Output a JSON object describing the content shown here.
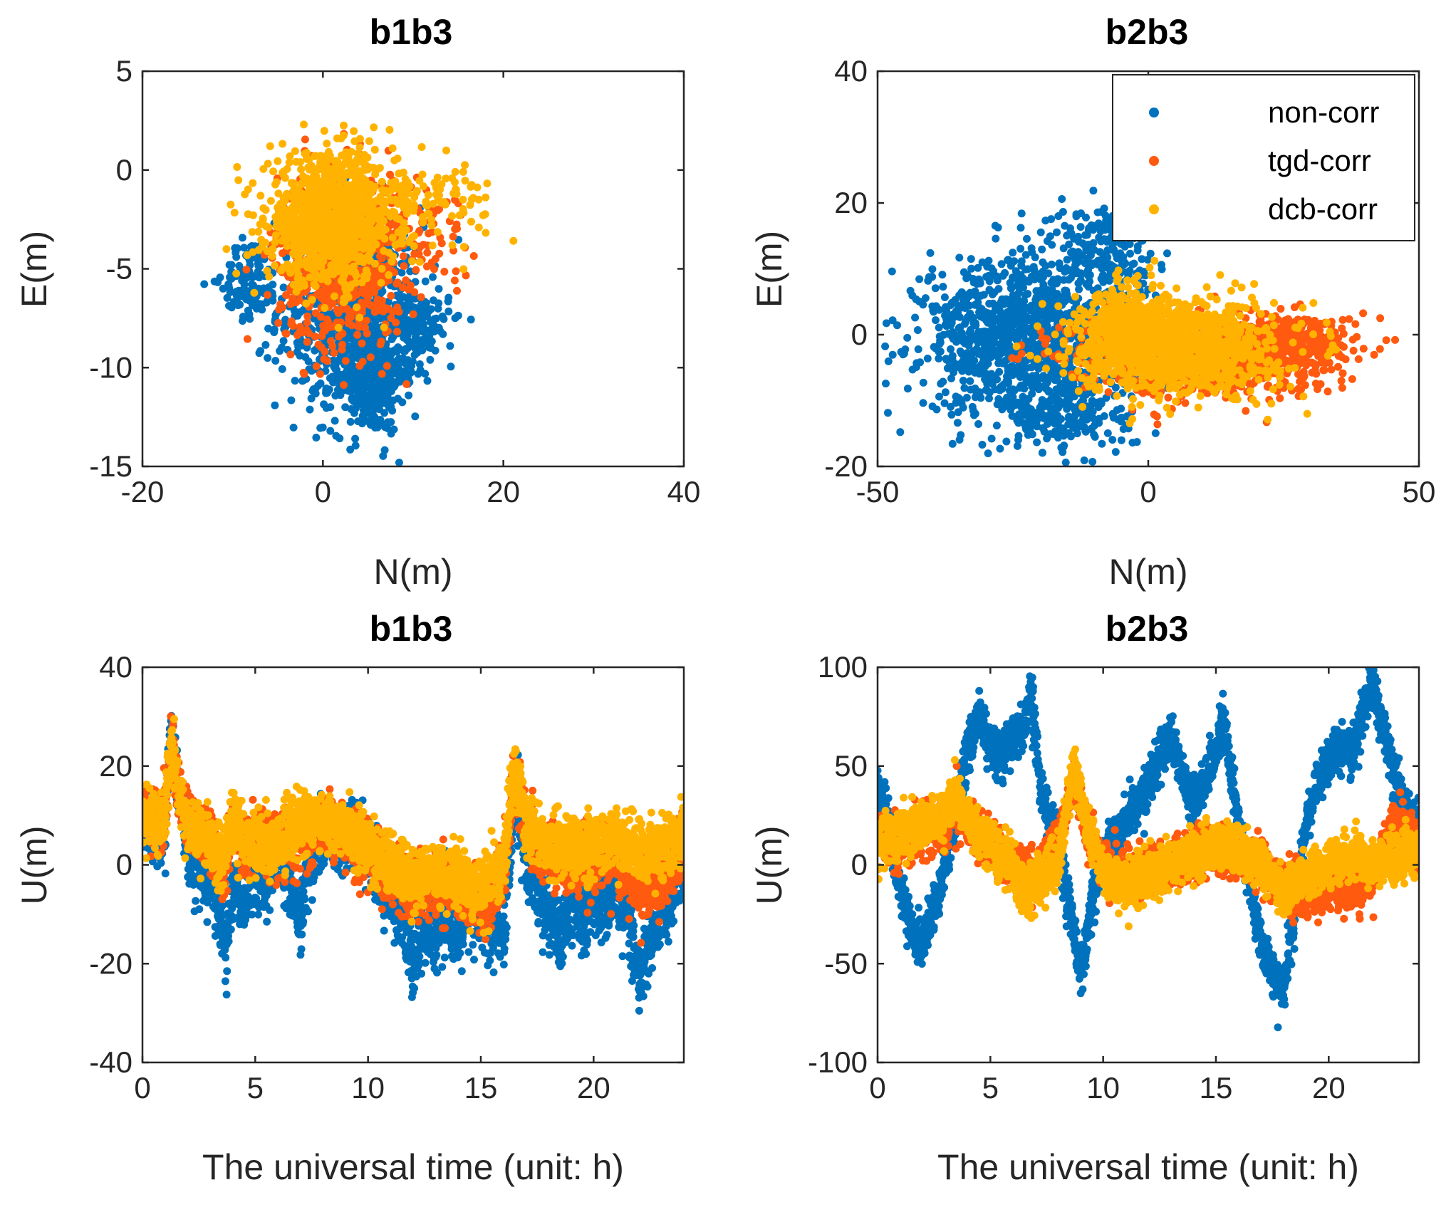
{
  "colors": {
    "non_corr": "#0072BD",
    "tgd_corr": "#FF5A0F",
    "dcb_corr": "#FFB300"
  },
  "chart_data": [
    {
      "type": "scatter",
      "title": "b1b3",
      "xlabel": "N(m)",
      "ylabel": "E(m)",
      "xlim": [
        -20,
        40
      ],
      "ylim": [
        -15,
        5
      ],
      "xticks": [
        "-20",
        "0",
        "20",
        "40"
      ],
      "yticks": [
        "5",
        "0",
        "-5",
        "-10",
        "-15"
      ],
      "series": [
        {
          "key": "non_corr",
          "clusters": [
            {
              "cx": 3,
              "cy": -7,
              "sx": 4,
              "sy": 2.6,
              "n": 700
            },
            {
              "cx": 5,
              "cy": -10.5,
              "sx": 2,
              "sy": 1.4,
              "n": 350
            },
            {
              "cx": -8,
              "cy": -5.5,
              "sx": 1.5,
              "sy": 1,
              "n": 120
            },
            {
              "cx": 10,
              "cy": -8,
              "sx": 2,
              "sy": 1,
              "n": 150
            }
          ]
        },
        {
          "key": "tgd_corr",
          "clusters": [
            {
              "cx": 2,
              "cy": -4.5,
              "sx": 3.5,
              "sy": 2.2,
              "n": 800
            },
            {
              "cx": 12,
              "cy": -3,
              "sx": 2.5,
              "sy": 1.2,
              "n": 60
            }
          ]
        },
        {
          "key": "dcb_corr",
          "clusters": [
            {
              "cx": 1,
              "cy": -2.5,
              "sx": 3.5,
              "sy": 1.6,
              "n": 1100
            },
            {
              "cx": 12,
              "cy": -1.5,
              "sx": 3.5,
              "sy": 1,
              "n": 100
            }
          ]
        }
      ]
    },
    {
      "type": "scatter",
      "title": "b2b3",
      "xlabel": "N(m)",
      "ylabel": "E(m)",
      "xlim": [
        -50,
        50
      ],
      "ylim": [
        -20,
        40
      ],
      "xticks": [
        "-50",
        "0",
        "50"
      ],
      "yticks": [
        "40",
        "20",
        "0",
        "-20"
      ],
      "legend": {
        "position": "top-right",
        "entries": [
          {
            "key": "non_corr",
            "label": "non-corr"
          },
          {
            "key": "tgd_corr",
            "label": "tgd-corr"
          },
          {
            "key": "dcb_corr",
            "label": "dcb-corr"
          }
        ]
      },
      "series": [
        {
          "key": "non_corr",
          "clusters": [
            {
              "cx": -22,
              "cy": 0,
              "sx": 10,
              "sy": 6,
              "n": 1200
            },
            {
              "cx": -8,
              "cy": 13,
              "sx": 5,
              "sy": 4,
              "n": 200
            },
            {
              "cx": -15,
              "cy": -12,
              "sx": 6,
              "sy": 3,
              "n": 200
            }
          ]
        },
        {
          "key": "tgd_corr",
          "clusters": [
            {
              "cx": 10,
              "cy": -3,
              "sx": 12,
              "sy": 3,
              "n": 900
            },
            {
              "cx": 28,
              "cy": -1,
              "sx": 5,
              "sy": 2,
              "n": 200
            }
          ]
        },
        {
          "key": "dcb_corr",
          "clusters": [
            {
              "cx": 5,
              "cy": -2,
              "sx": 9,
              "sy": 3.5,
              "n": 1200
            },
            {
              "cx": -3,
              "cy": 2,
              "sx": 4,
              "sy": 3,
              "n": 200
            }
          ]
        }
      ]
    },
    {
      "type": "scatter",
      "title": "b1b3",
      "xlabel": "The universal time (unit: h)",
      "ylabel": "U(m)",
      "xlim": [
        0,
        24
      ],
      "ylim": [
        -40,
        40
      ],
      "xticks": [
        "0",
        "5",
        "10",
        "15",
        "20"
      ],
      "yticks": [
        "40",
        "20",
        "0",
        "-20",
        "-40"
      ],
      "series": [
        {
          "key": "non_corr",
          "spread": 3.5,
          "trace": [
            [
              0,
              10
            ],
            [
              0.5,
              6
            ],
            [
              1,
              8
            ],
            [
              1.3,
              28
            ],
            [
              1.6,
              15
            ],
            [
              2,
              5
            ],
            [
              2.5,
              0
            ],
            [
              3,
              -2
            ],
            [
              3.5,
              -12
            ],
            [
              3.7,
              -18
            ],
            [
              4,
              -5
            ],
            [
              4.5,
              -8
            ],
            [
              5,
              0
            ],
            [
              5.5,
              -3
            ],
            [
              6,
              2
            ],
            [
              6.5,
              -4
            ],
            [
              7,
              -10
            ],
            [
              7.5,
              3
            ],
            [
              8,
              6
            ],
            [
              9,
              4
            ],
            [
              9.5,
              8
            ],
            [
              10,
              2
            ],
            [
              10.5,
              -3
            ],
            [
              11,
              -5
            ],
            [
              11.5,
              -10
            ],
            [
              12,
              -22
            ],
            [
              12.5,
              -12
            ],
            [
              13,
              -15
            ],
            [
              13.5,
              -10
            ],
            [
              14,
              -15
            ],
            [
              14.5,
              -8
            ],
            [
              15,
              -12
            ],
            [
              15.5,
              -10
            ],
            [
              16,
              -15
            ],
            [
              16.5,
              15
            ],
            [
              17,
              2
            ],
            [
              17.5,
              -5
            ],
            [
              18,
              -10
            ],
            [
              18.5,
              -15
            ],
            [
              19,
              -8
            ],
            [
              19.5,
              -12
            ],
            [
              20,
              -5
            ],
            [
              20.5,
              -8
            ],
            [
              21,
              -5
            ],
            [
              21.5,
              -10
            ],
            [
              22,
              -23
            ],
            [
              22.5,
              -15
            ],
            [
              23,
              -8
            ],
            [
              23.5,
              -5
            ],
            [
              24,
              0
            ]
          ]
        },
        {
          "key": "tgd_corr",
          "spread": 3,
          "trace": [
            [
              0,
              10
            ],
            [
              0.5,
              8
            ],
            [
              1,
              10
            ],
            [
              1.3,
              25
            ],
            [
              1.6,
              15
            ],
            [
              2,
              8
            ],
            [
              3,
              5
            ],
            [
              3.5,
              -2
            ],
            [
              4,
              8
            ],
            [
              4.5,
              3
            ],
            [
              5,
              5
            ],
            [
              6,
              3
            ],
            [
              7,
              6
            ],
            [
              8,
              8
            ],
            [
              9,
              6
            ],
            [
              10,
              2
            ],
            [
              11,
              -2
            ],
            [
              12,
              -5
            ],
            [
              13,
              -3
            ],
            [
              14,
              -5
            ],
            [
              15,
              -8
            ],
            [
              15.5,
              -5
            ],
            [
              16,
              -2
            ],
            [
              16.5,
              18
            ],
            [
              17,
              8
            ],
            [
              18,
              2
            ],
            [
              19,
              0
            ],
            [
              20,
              2
            ],
            [
              21,
              2
            ],
            [
              22,
              -5
            ],
            [
              23,
              -3
            ],
            [
              24,
              5
            ]
          ]
        },
        {
          "key": "dcb_corr",
          "spread": 3,
          "trace": [
            [
              0,
              10
            ],
            [
              0.5,
              8
            ],
            [
              1,
              10
            ],
            [
              1.3,
              25
            ],
            [
              1.6,
              15
            ],
            [
              2,
              8
            ],
            [
              3,
              5
            ],
            [
              3.5,
              0
            ],
            [
              4,
              10
            ],
            [
              4.5,
              5
            ],
            [
              5,
              5
            ],
            [
              6,
              4
            ],
            [
              7,
              8
            ],
            [
              8,
              9
            ],
            [
              9,
              8
            ],
            [
              10,
              3
            ],
            [
              11,
              0
            ],
            [
              12,
              -3
            ],
            [
              13,
              -1
            ],
            [
              14,
              -3
            ],
            [
              15,
              -5
            ],
            [
              15.5,
              -2
            ],
            [
              16,
              0
            ],
            [
              16.5,
              20
            ],
            [
              17,
              8
            ],
            [
              18,
              4
            ],
            [
              19,
              3
            ],
            [
              20,
              4
            ],
            [
              21,
              5
            ],
            [
              22,
              2
            ],
            [
              23,
              3
            ],
            [
              24,
              6
            ]
          ]
        }
      ]
    },
    {
      "type": "scatter",
      "title": "b2b3",
      "xlabel": "The universal time (unit: h)",
      "ylabel": "U(m)",
      "xlim": [
        0,
        24
      ],
      "ylim": [
        -100,
        100
      ],
      "xticks": [
        "0",
        "5",
        "10",
        "15",
        "20"
      ],
      "yticks": [
        "100",
        "50",
        "0",
        "-50",
        "-100"
      ],
      "series": [
        {
          "key": "non_corr",
          "spread": 6,
          "trace": [
            [
              0,
              40
            ],
            [
              0.5,
              20
            ],
            [
              1,
              -10
            ],
            [
              1.5,
              -35
            ],
            [
              2,
              -40
            ],
            [
              2.5,
              -20
            ],
            [
              3,
              0
            ],
            [
              3.5,
              30
            ],
            [
              4,
              60
            ],
            [
              4.5,
              75
            ],
            [
              5,
              60
            ],
            [
              5.5,
              55
            ],
            [
              6,
              65
            ],
            [
              6.5,
              70
            ],
            [
              6.8,
              90
            ],
            [
              7.2,
              40
            ],
            [
              8,
              10
            ],
            [
              8.5,
              -20
            ],
            [
              9,
              -55
            ],
            [
              9.5,
              -20
            ],
            [
              10,
              5
            ],
            [
              11,
              20
            ],
            [
              12,
              40
            ],
            [
              12.5,
              55
            ],
            [
              13,
              65
            ],
            [
              13.5,
              45
            ],
            [
              14,
              30
            ],
            [
              14.5,
              40
            ],
            [
              15,
              55
            ],
            [
              15.3,
              75
            ],
            [
              15.6,
              50
            ],
            [
              16,
              20
            ],
            [
              16.5,
              -10
            ],
            [
              17,
              -40
            ],
            [
              17.5,
              -55
            ],
            [
              18,
              -65
            ],
            [
              18.5,
              -20
            ],
            [
              19,
              20
            ],
            [
              19.5,
              40
            ],
            [
              20,
              55
            ],
            [
              20.5,
              60
            ],
            [
              21,
              55
            ],
            [
              21.5,
              75
            ],
            [
              21.9,
              95
            ],
            [
              22.5,
              65
            ],
            [
              23,
              40
            ],
            [
              23.5,
              25
            ],
            [
              24,
              20
            ]
          ]
        },
        {
          "key": "tgd_corr",
          "spread": 6,
          "trace": [
            [
              0,
              15
            ],
            [
              1,
              10
            ],
            [
              2,
              18
            ],
            [
              3,
              20
            ],
            [
              3.5,
              30
            ],
            [
              4,
              20
            ],
            [
              5,
              10
            ],
            [
              6,
              0
            ],
            [
              7,
              -5
            ],
            [
              8,
              10
            ],
            [
              8.7,
              45
            ],
            [
              9.2,
              20
            ],
            [
              10,
              0
            ],
            [
              11,
              -5
            ],
            [
              12,
              -3
            ],
            [
              13,
              0
            ],
            [
              14,
              5
            ],
            [
              15,
              8
            ],
            [
              16,
              5
            ],
            [
              17,
              0
            ],
            [
              18,
              -10
            ],
            [
              19,
              -15
            ],
            [
              20,
              -10
            ],
            [
              21,
              -15
            ],
            [
              22,
              -5
            ],
            [
              22.5,
              10
            ],
            [
              23,
              20
            ],
            [
              24,
              10
            ]
          ]
        },
        {
          "key": "dcb_corr",
          "spread": 6,
          "trace": [
            [
              0,
              10
            ],
            [
              1,
              15
            ],
            [
              2,
              20
            ],
            [
              3,
              25
            ],
            [
              3.5,
              35
            ],
            [
              4,
              22
            ],
            [
              5,
              10
            ],
            [
              6,
              0
            ],
            [
              6.5,
              -15
            ],
            [
              7,
              -10
            ],
            [
              8,
              0
            ],
            [
              8.7,
              50
            ],
            [
              9.2,
              25
            ],
            [
              10,
              -5
            ],
            [
              11,
              -10
            ],
            [
              12,
              -5
            ],
            [
              13,
              0
            ],
            [
              14,
              5
            ],
            [
              15,
              10
            ],
            [
              16,
              8
            ],
            [
              17,
              0
            ],
            [
              18,
              -15
            ],
            [
              19,
              -5
            ],
            [
              20,
              0
            ],
            [
              21,
              5
            ],
            [
              22,
              0
            ],
            [
              23,
              5
            ],
            [
              24,
              8
            ]
          ]
        }
      ]
    }
  ]
}
